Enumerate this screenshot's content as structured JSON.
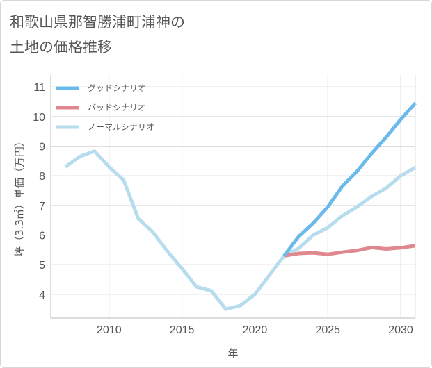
{
  "title": {
    "line1": "和歌山県那智勝浦町浦神の",
    "line2": "土地の価格推移"
  },
  "chart_data": {
    "type": "line",
    "xlabel": "年",
    "ylabel": "坪（3.3㎡）単価（万円）",
    "xlim": [
      2006,
      2031
    ],
    "ylim": [
      3.2,
      11.4
    ],
    "x_ticks": [
      2010,
      2015,
      2020,
      2025,
      2030
    ],
    "y_ticks": [
      4,
      5,
      6,
      7,
      8,
      9,
      10,
      11
    ],
    "grid": true,
    "legend_position": "top-left",
    "series": [
      {
        "name": "グッドシナリオ",
        "color": "#6cb9ec",
        "x": [
          2022,
          2023,
          2024,
          2025,
          2026,
          2027,
          2028,
          2029,
          2030,
          2031
        ],
        "y": [
          5.3,
          5.95,
          6.4,
          6.95,
          7.65,
          8.15,
          8.75,
          9.3,
          9.9,
          10.45
        ]
      },
      {
        "name": "バッドシナリオ",
        "color": "#e0888f",
        "x": [
          2022,
          2023,
          2024,
          2025,
          2026,
          2027,
          2028,
          2029,
          2030,
          2031
        ],
        "y": [
          5.3,
          5.38,
          5.4,
          5.35,
          5.42,
          5.48,
          5.58,
          5.53,
          5.57,
          5.64
        ]
      },
      {
        "name": "ノーマルシナリオ",
        "color": "#b7dcee",
        "x": [
          2007,
          2008,
          2009,
          2010,
          2011,
          2012,
          2013,
          2014,
          2015,
          2016,
          2017,
          2018,
          2019,
          2020,
          2021,
          2022,
          2023,
          2024,
          2025,
          2026,
          2027,
          2028,
          2029,
          2030,
          2031
        ],
        "y": [
          8.3,
          8.65,
          8.83,
          8.3,
          7.85,
          6.55,
          6.1,
          5.45,
          4.87,
          4.25,
          4.12,
          3.5,
          3.62,
          4.0,
          4.65,
          5.3,
          5.55,
          6.0,
          6.25,
          6.65,
          6.95,
          7.3,
          7.58,
          8.0,
          8.28
        ]
      }
    ]
  }
}
